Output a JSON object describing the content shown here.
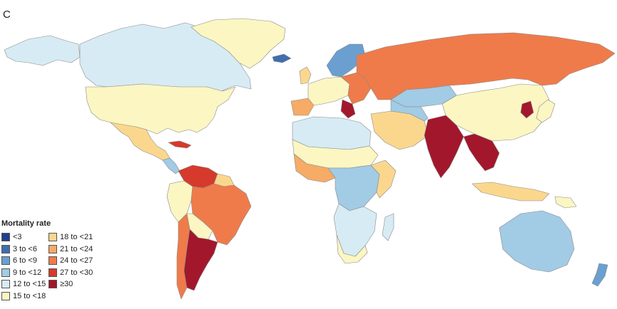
{
  "panel_label": "C",
  "legend": {
    "title": "Mortality rate",
    "items": [
      {
        "label": "<3",
        "color": "#1f3e8f"
      },
      {
        "label": "3 to <6",
        "color": "#3f6fb0"
      },
      {
        "label": "6 to <9",
        "color": "#6a9fd0"
      },
      {
        "label": "9 to <12",
        "color": "#a2cbe5"
      },
      {
        "label": "12 to <15",
        "color": "#d7ebf4"
      },
      {
        "label": "15 to <18",
        "color": "#fbf6c2"
      },
      {
        "label": "18 to <21",
        "color": "#fbd78e"
      },
      {
        "label": "21 to <24",
        "color": "#f6ab66"
      },
      {
        "label": "24 to <27",
        "color": "#ef7b4a"
      },
      {
        "label": "27 to <30",
        "color": "#d63a2c"
      },
      {
        "label": "≥30",
        "color": "#a3172c"
      }
    ]
  },
  "colors": {
    "background": "#ffffff",
    "border": "#8a8a8a",
    "no_data": "#9a9a9a"
  }
}
